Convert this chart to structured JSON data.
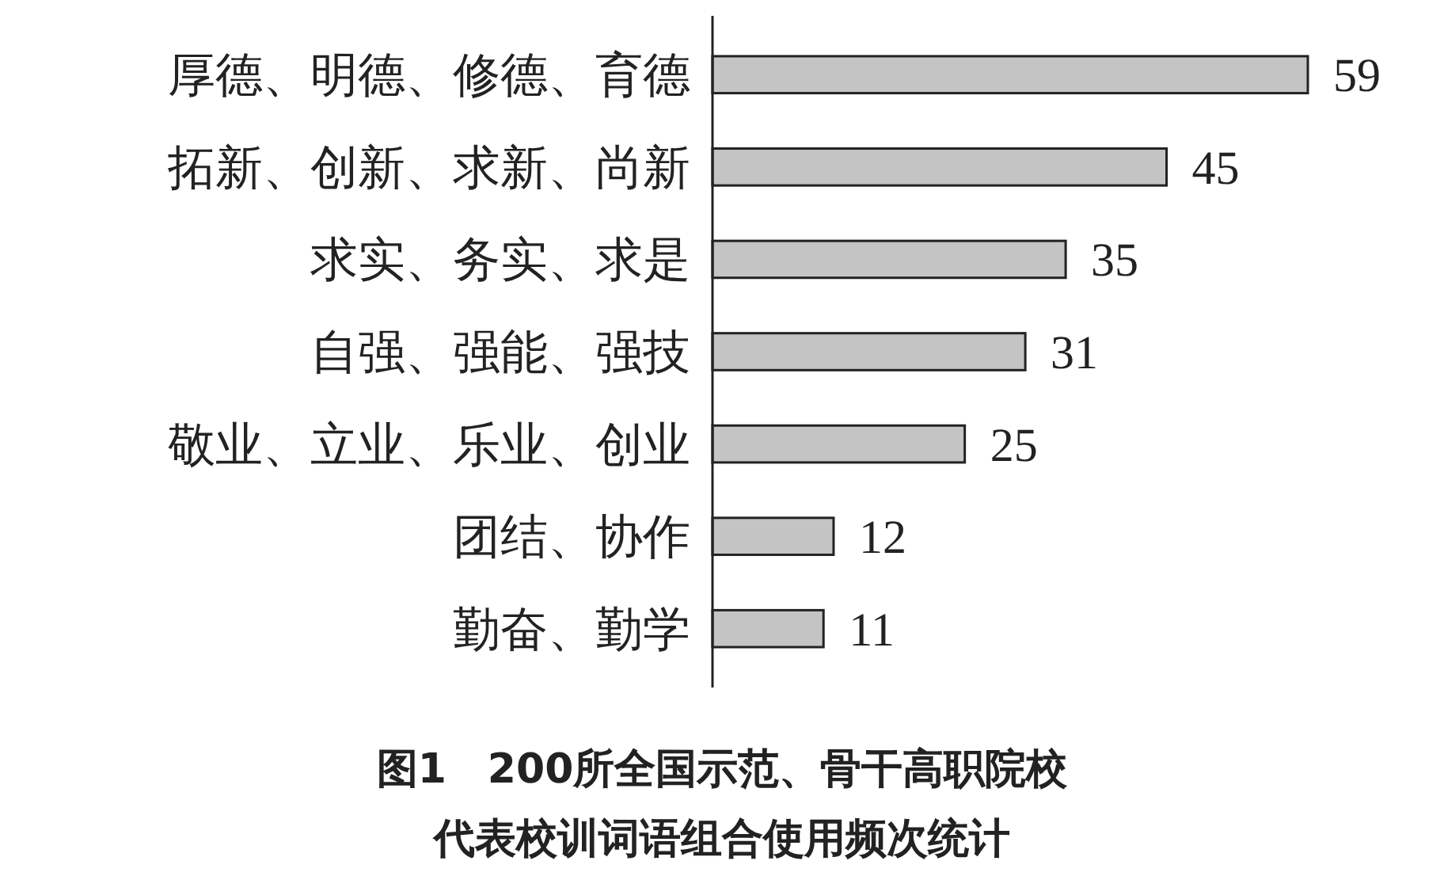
{
  "chart_data": {
    "type": "bar",
    "orientation": "horizontal",
    "title": "图1　200所全国示范、骨干高职院校",
    "subtitle": "代表校训词语组合使用频次统计",
    "categories": [
      "厚德、明德、修德、育德",
      "拓新、创新、求新、尚新",
      "求实、务实、求是",
      "自强、强能、强技",
      "敬业、立业、乐业、创业",
      "团结、协作",
      "勤奋、勤学"
    ],
    "values": [
      59,
      45,
      35,
      31,
      25,
      12,
      11
    ],
    "color": "#c4c4c4",
    "data_labels": true
  }
}
